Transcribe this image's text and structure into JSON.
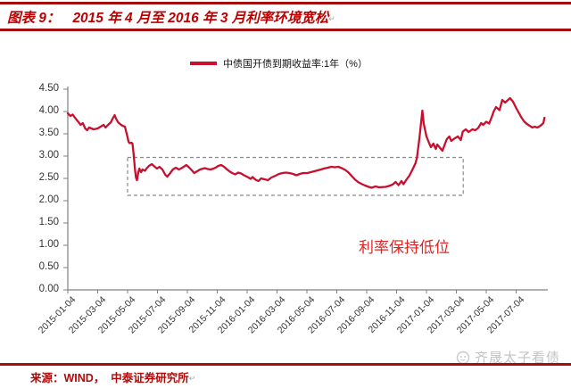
{
  "figure": {
    "label": "图表 9：",
    "title": "2015 年 4 月至 2016 年 3 月利率环境宽松",
    "paragraph_mark": "↵"
  },
  "legend": {
    "series_label": "中债国开债到期收益率:1年（%）"
  },
  "annotation_text": "利率保持低位",
  "watermark": {
    "text": "齐晟太子看债"
  },
  "footer": {
    "source": "来源：WIND，  中泰证券研究所",
    "paragraph_mark": "↵"
  },
  "colors": {
    "title_red": "#c00000",
    "rule_red": "#a50d0d",
    "series_line": "#c8102e",
    "annotation_red": "#e02424",
    "axis_gray": "#808080",
    "box_dash_gray": "#8a8a8a",
    "watermark_gray": "#c3c3c3"
  },
  "chart_data": {
    "type": "line",
    "title": "中债国开债到期收益率:1年（%）",
    "xlabel": "",
    "ylabel": "",
    "ylim": [
      0,
      4.5
    ],
    "grid": false,
    "legend_position": "top-center",
    "y_tick_labels": [
      "4.50",
      "4.00",
      "3.50",
      "3.00",
      "2.50",
      "2.00",
      "1.50",
      "1.00",
      "0.50",
      "0.00"
    ],
    "x_tick_labels": [
      "2015-01-04",
      "2015-03-04",
      "2015-05-04",
      "2015-07-04",
      "2015-09-04",
      "2015-11-04",
      "2016-01-04",
      "2016-03-04",
      "2016-05-04",
      "2016-07-04",
      "2016-09-04",
      "2016-11-04",
      "2017-01-04",
      "2017-03-04",
      "2017-05-04",
      "2017-07-04"
    ],
    "highlight_box": {
      "x0": "2015-05-04",
      "x1": "2017-03-18",
      "y0": 2.12,
      "y1": 2.97
    },
    "annotation": {
      "x": "2016-11-20",
      "y": 1.0,
      "text": "利率保持低位"
    },
    "series": [
      {
        "name": "中债国开债到期收益率:1年（%）",
        "color": "#c8102e",
        "dates": [
          "2015-01-04",
          "2015-01-09",
          "2015-01-14",
          "2015-01-20",
          "2015-01-26",
          "2015-01-30",
          "2015-02-04",
          "2015-02-09",
          "2015-02-13",
          "2015-02-17",
          "2015-02-26",
          "2015-03-04",
          "2015-03-10",
          "2015-03-16",
          "2015-03-20",
          "2015-03-25",
          "2015-03-31",
          "2015-04-03",
          "2015-04-08",
          "2015-04-10",
          "2015-04-15",
          "2015-04-20",
          "2015-04-24",
          "2015-04-29",
          "2015-05-04",
          "2015-05-06",
          "2015-05-08",
          "2015-05-12",
          "2015-05-14",
          "2015-05-16",
          "2015-05-19",
          "2015-05-21",
          "2015-05-23",
          "2015-05-26",
          "2015-05-28",
          "2015-06-01",
          "2015-06-04",
          "2015-06-09",
          "2015-06-12",
          "2015-06-17",
          "2015-06-23",
          "2015-06-29",
          "2015-07-03",
          "2015-07-08",
          "2015-07-14",
          "2015-07-20",
          "2015-07-24",
          "2015-07-30",
          "2015-08-05",
          "2015-08-11",
          "2015-08-17",
          "2015-08-21",
          "2015-08-27",
          "2015-09-02",
          "2015-09-08",
          "2015-09-14",
          "2015-09-18",
          "2015-09-24",
          "2015-09-30",
          "2015-10-09",
          "2015-10-15",
          "2015-10-21",
          "2015-10-27",
          "2015-11-02",
          "2015-11-06",
          "2015-11-12",
          "2015-11-18",
          "2015-11-24",
          "2015-11-30",
          "2015-12-04",
          "2015-12-10",
          "2015-12-16",
          "2015-12-22",
          "2015-12-28",
          "2016-01-05",
          "2016-01-11",
          "2016-01-15",
          "2016-01-21",
          "2016-01-27",
          "2016-02-02",
          "2016-02-16",
          "2016-02-23",
          "2016-03-01",
          "2016-03-08",
          "2016-03-15",
          "2016-03-22",
          "2016-03-29",
          "2016-04-06",
          "2016-04-13",
          "2016-04-20",
          "2016-04-27",
          "2016-05-05",
          "2016-05-12",
          "2016-05-19",
          "2016-05-26",
          "2016-06-02",
          "2016-06-08",
          "2016-06-16",
          "2016-06-23",
          "2016-06-30",
          "2016-07-07",
          "2016-07-14",
          "2016-07-21",
          "2016-07-28",
          "2016-08-04",
          "2016-08-11",
          "2016-08-18",
          "2016-08-25",
          "2016-09-01",
          "2016-09-08",
          "2016-09-14",
          "2016-09-22",
          "2016-09-29",
          "2016-10-12",
          "2016-10-19",
          "2016-10-26",
          "2016-11-02",
          "2016-11-08",
          "2016-11-14",
          "2016-11-18",
          "2016-11-24",
          "2016-11-30",
          "2016-12-06",
          "2016-12-12",
          "2016-12-15",
          "2016-12-20",
          "2016-12-26",
          "2016-12-29",
          "2017-01-04",
          "2017-01-09",
          "2017-01-13",
          "2017-01-18",
          "2017-01-23",
          "2017-01-26",
          "2017-02-06",
          "2017-02-10",
          "2017-02-15",
          "2017-02-20",
          "2017-02-24",
          "2017-03-01",
          "2017-03-07",
          "2017-03-13",
          "2017-03-17",
          "2017-03-23",
          "2017-03-29",
          "2017-04-06",
          "2017-04-12",
          "2017-04-18",
          "2017-04-24",
          "2017-04-28",
          "2017-05-04",
          "2017-05-10",
          "2017-05-16",
          "2017-05-19",
          "2017-05-24",
          "2017-05-31",
          "2017-06-06",
          "2017-06-12",
          "2017-06-16",
          "2017-06-22",
          "2017-06-28",
          "2017-07-04",
          "2017-07-10",
          "2017-07-14",
          "2017-07-20",
          "2017-07-26",
          "2017-08-01",
          "2017-08-07",
          "2017-08-11",
          "2017-08-17",
          "2017-08-23",
          "2017-08-29",
          "2017-09-01"
        ],
        "values": [
          3.96,
          3.9,
          3.93,
          3.84,
          3.76,
          3.7,
          3.74,
          3.62,
          3.58,
          3.64,
          3.6,
          3.62,
          3.66,
          3.7,
          3.64,
          3.7,
          3.76,
          3.82,
          3.92,
          3.86,
          3.76,
          3.71,
          3.68,
          3.66,
          3.42,
          3.32,
          3.29,
          3.3,
          3.28,
          3.08,
          2.7,
          2.52,
          2.46,
          2.64,
          2.72,
          2.64,
          2.7,
          2.67,
          2.72,
          2.78,
          2.82,
          2.76,
          2.72,
          2.76,
          2.7,
          2.58,
          2.54,
          2.62,
          2.7,
          2.74,
          2.7,
          2.72,
          2.76,
          2.8,
          2.74,
          2.67,
          2.62,
          2.66,
          2.7,
          2.73,
          2.71,
          2.7,
          2.72,
          2.75,
          2.78,
          2.8,
          2.76,
          2.7,
          2.65,
          2.62,
          2.59,
          2.63,
          2.61,
          2.57,
          2.53,
          2.49,
          2.53,
          2.47,
          2.44,
          2.5,
          2.46,
          2.52,
          2.56,
          2.6,
          2.62,
          2.63,
          2.62,
          2.6,
          2.57,
          2.6,
          2.62,
          2.62,
          2.64,
          2.66,
          2.68,
          2.7,
          2.72,
          2.74,
          2.76,
          2.75,
          2.76,
          2.73,
          2.69,
          2.63,
          2.55,
          2.47,
          2.41,
          2.37,
          2.34,
          2.31,
          2.29,
          2.32,
          2.3,
          2.31,
          2.33,
          2.36,
          2.42,
          2.35,
          2.44,
          2.37,
          2.47,
          2.56,
          2.7,
          2.84,
          2.96,
          3.4,
          4.02,
          3.72,
          3.44,
          3.3,
          3.2,
          3.28,
          3.16,
          3.26,
          3.12,
          3.24,
          3.38,
          3.44,
          3.34,
          3.4,
          3.44,
          3.36,
          3.55,
          3.6,
          3.54,
          3.6,
          3.58,
          3.63,
          3.74,
          3.7,
          3.77,
          3.73,
          3.9,
          4.0,
          4.1,
          4.03,
          4.26,
          4.2,
          4.24,
          4.3,
          4.22,
          4.08,
          3.96,
          3.88,
          3.78,
          3.72,
          3.68,
          3.64,
          3.66,
          3.64,
          3.68,
          3.74,
          3.86
        ]
      }
    ]
  }
}
